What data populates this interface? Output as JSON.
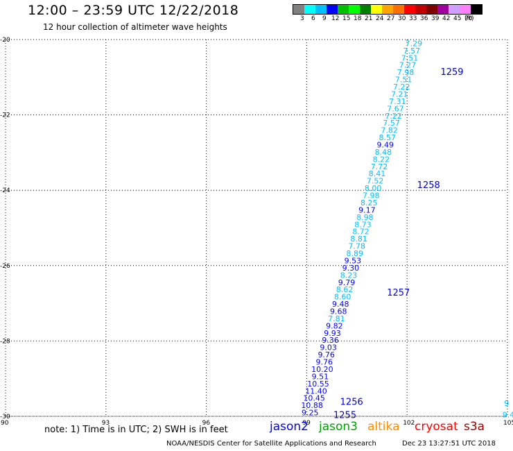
{
  "header": {
    "title": "12:00 – 23:59 UTC 12/22/2018",
    "subtitle": "12 hour collection of altimeter wave heights"
  },
  "legend": {
    "colors": [
      "#808080",
      "#00ffff",
      "#00bfff",
      "#0000ff",
      "#00c000",
      "#00ff00",
      "#008000",
      "#ffff00",
      "#ffa500",
      "#ff7000",
      "#ff0000",
      "#c00000",
      "#800000",
      "#a000a0",
      "#d0a0ff",
      "#ff80ff",
      "#000000"
    ],
    "labels": [
      "3",
      "6",
      "9",
      "12",
      "15",
      "18",
      "21",
      "24",
      "27",
      "30",
      "33",
      "36",
      "39",
      "42",
      "45",
      "70",
      "(ft)"
    ]
  },
  "chart_data": {
    "type": "scatter",
    "xlim": [
      90,
      105
    ],
    "ylim": [
      -30,
      -20
    ],
    "x_ticks": [
      "90",
      "93",
      "96",
      "99",
      "102",
      "105"
    ],
    "y_ticks": [
      "-20",
      "-22",
      "-24",
      "-26",
      "-28",
      "-30"
    ],
    "grid": true,
    "colors": {
      "light": "#00bfff",
      "dark": "#0000ff"
    },
    "track": {
      "start": {
        "lon": 102.2,
        "lat": -20.1
      },
      "end": {
        "lon": 99.1,
        "lat": -29.9
      },
      "values": [
        {
          "v": "7.29",
          "c": "light"
        },
        {
          "v": "7.57",
          "c": "light"
        },
        {
          "v": "7.51",
          "c": "light"
        },
        {
          "v": "7.27",
          "c": "light"
        },
        {
          "v": "7.98",
          "c": "light"
        },
        {
          "v": "7.51",
          "c": "light"
        },
        {
          "v": "7.22",
          "c": "light"
        },
        {
          "v": "7.21",
          "c": "light"
        },
        {
          "v": "7.31",
          "c": "light"
        },
        {
          "v": "7.67",
          "c": "light"
        },
        {
          "v": "7.22",
          "c": "light"
        },
        {
          "v": "7.57",
          "c": "light"
        },
        {
          "v": "7.82",
          "c": "light"
        },
        {
          "v": "8.57",
          "c": "light"
        },
        {
          "v": "9.49",
          "c": "dark"
        },
        {
          "v": "8.48",
          "c": "light"
        },
        {
          "v": "8.22",
          "c": "light"
        },
        {
          "v": "7.72",
          "c": "light"
        },
        {
          "v": "8.41",
          "c": "light"
        },
        {
          "v": "7.52",
          "c": "light"
        },
        {
          "v": "8.00",
          "c": "light"
        },
        {
          "v": "7.98",
          "c": "light"
        },
        {
          "v": "8.25",
          "c": "light"
        },
        {
          "v": "9.17",
          "c": "dark"
        },
        {
          "v": "8.98",
          "c": "light"
        },
        {
          "v": "8.73",
          "c": "light"
        },
        {
          "v": "8.72",
          "c": "light"
        },
        {
          "v": "8.81",
          "c": "light"
        },
        {
          "v": "7.78",
          "c": "light"
        },
        {
          "v": "8.89",
          "c": "light"
        },
        {
          "v": "9.53",
          "c": "dark"
        },
        {
          "v": "9.30",
          "c": "dark"
        },
        {
          "v": "8.23",
          "c": "light"
        },
        {
          "v": "9.79",
          "c": "dark"
        },
        {
          "v": "8.62",
          "c": "light"
        },
        {
          "v": "8.60",
          "c": "light"
        },
        {
          "v": "9.48",
          "c": "dark"
        },
        {
          "v": "9.68",
          "c": "dark"
        },
        {
          "v": "7.81",
          "c": "light"
        },
        {
          "v": "9.82",
          "c": "dark"
        },
        {
          "v": "9.93",
          "c": "dark"
        },
        {
          "v": "9.36",
          "c": "dark"
        },
        {
          "v": "9.03",
          "c": "dark"
        },
        {
          "v": "9.76",
          "c": "dark"
        },
        {
          "v": "9.76",
          "c": "dark"
        },
        {
          "v": "10.20",
          "c": "dark"
        },
        {
          "v": "9.51",
          "c": "dark"
        },
        {
          "v": "10.55",
          "c": "dark"
        },
        {
          "v": "11.40",
          "c": "dark"
        },
        {
          "v": "10.45",
          "c": "dark"
        },
        {
          "v": "10.88",
          "c": "dark"
        },
        {
          "v": "9.25",
          "c": "dark"
        }
      ]
    },
    "pass_labels": [
      {
        "text": "1259",
        "lon": 103.0,
        "lat": -20.85
      },
      {
        "text": "1258",
        "lon": 102.3,
        "lat": -23.85
      },
      {
        "text": "1257",
        "lon": 101.4,
        "lat": -26.7
      },
      {
        "text": "1256",
        "lon": 100.0,
        "lat": -29.6
      },
      {
        "text": "1255",
        "lon": 99.8,
        "lat": -29.95
      }
    ],
    "edge_values": [
      {
        "v": "9",
        "lon": 104.9,
        "lat": -29.65
      },
      {
        "v": "9.4",
        "lon": 104.85,
        "lat": -29.95
      }
    ]
  },
  "note": "note: 1) Time is in UTC; 2) SWH is in feet",
  "satellites": [
    {
      "name": "jason2",
      "color": "#0000ff"
    },
    {
      "name": "jason3",
      "color": "#00a000"
    },
    {
      "name": "altika",
      "color": "#ff8c00"
    },
    {
      "name": "cryosat",
      "color": "#ff0000"
    },
    {
      "name": "s3a",
      "color": "#a00000"
    }
  ],
  "footer": {
    "left": "NOAA/NESDIS Center for Satellite Applications and Research",
    "right": "Dec 23 13:27:51 UTC 2018"
  }
}
